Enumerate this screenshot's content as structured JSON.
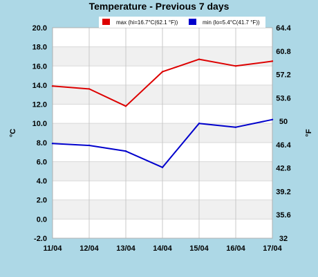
{
  "chart_data": {
    "type": "line",
    "title": "Temperature - Previous 7 days",
    "categories": [
      "11/04",
      "12/04",
      "13/04",
      "14/04",
      "15/04",
      "16/04",
      "17/04"
    ],
    "series": [
      {
        "name": "max (hi=16.7°C(62.1 °F))",
        "color": "#dd0000",
        "values": [
          13.9,
          13.6,
          11.8,
          15.4,
          16.7,
          16.0,
          16.5
        ]
      },
      {
        "name": "min (lo=5.4°C(41.7 °F))",
        "color": "#0000cc",
        "values": [
          7.9,
          7.7,
          7.1,
          5.4,
          10.0,
          9.6,
          10.4
        ]
      }
    ],
    "ylabel": "°C",
    "ylabel_right": "°F",
    "ylim": [
      -2.0,
      20.0
    ],
    "yticks": [
      "20.0",
      "18.0",
      "16.0",
      "14.0",
      "12.0",
      "10.0",
      "8.0",
      "6.0",
      "4.0",
      "2.0",
      "0.0",
      "-2.0"
    ],
    "yticks_right": [
      "64.4",
      "60.8",
      "57.2",
      "53.6",
      "50",
      "46.4",
      "42.8",
      "39.2",
      "35.6",
      "32"
    ],
    "grid": true,
    "legend": "top-right",
    "colors": {
      "background": "#add8e6",
      "plot_band_light": "#ffffff",
      "plot_band_dark": "#f0f0f0"
    }
  }
}
